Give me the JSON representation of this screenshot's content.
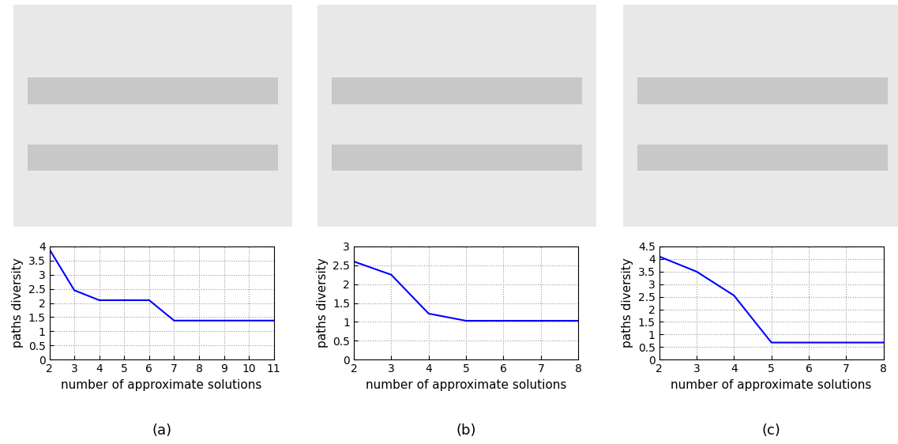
{
  "chart_data": [
    {
      "type": "line",
      "title": "(a)",
      "x_label": "number of approximate solutions",
      "y_label": "paths diversity",
      "x": [
        2,
        3,
        4,
        5,
        6,
        7,
        8,
        9,
        10,
        11
      ],
      "series": [
        {
          "name": "paths diversity",
          "color": "#0000ff",
          "values": [
            3.9,
            2.45,
            2.1,
            2.1,
            2.1,
            1.38,
            1.38,
            1.38,
            1.38,
            1.38
          ]
        }
      ],
      "xlim": [
        2,
        11
      ],
      "xticks": [
        2,
        3,
        4,
        5,
        6,
        7,
        8,
        9,
        10,
        11
      ],
      "ylim": [
        0,
        4
      ],
      "yticks": [
        0,
        0.5,
        1,
        1.5,
        2,
        2.5,
        3,
        3.5,
        4
      ],
      "grid": true
    },
    {
      "type": "line",
      "title": "(b)",
      "x_label": "number of approximate solutions",
      "y_label": "paths diversity",
      "x": [
        2,
        3,
        4,
        5,
        6,
        7,
        8
      ],
      "series": [
        {
          "name": "paths diversity",
          "color": "#0000ff",
          "values": [
            2.6,
            2.25,
            1.22,
            1.03,
            1.03,
            1.03,
            1.03
          ]
        }
      ],
      "xlim": [
        2,
        8
      ],
      "xticks": [
        2,
        3,
        4,
        5,
        6,
        7,
        8
      ],
      "ylim": [
        0,
        3
      ],
      "yticks": [
        0,
        0.5,
        1,
        1.5,
        2,
        2.5,
        3
      ],
      "grid": true
    },
    {
      "type": "line",
      "title": "(c)",
      "x_label": "number of approximate solutions",
      "y_label": "paths diversity",
      "x": [
        2,
        3,
        4,
        5,
        6,
        7,
        8
      ],
      "series": [
        {
          "name": "paths diversity",
          "color": "#0000ff",
          "values": [
            4.1,
            3.5,
            2.55,
            0.68,
            0.68,
            0.68,
            0.68
          ]
        }
      ],
      "xlim": [
        2,
        8
      ],
      "xticks": [
        2,
        3,
        4,
        5,
        6,
        7,
        8
      ],
      "ylim": [
        0,
        4.5
      ],
      "yticks": [
        0,
        0.5,
        1,
        1.5,
        2,
        2.5,
        3,
        3.5,
        4,
        4.5
      ],
      "grid": true
    }
  ]
}
